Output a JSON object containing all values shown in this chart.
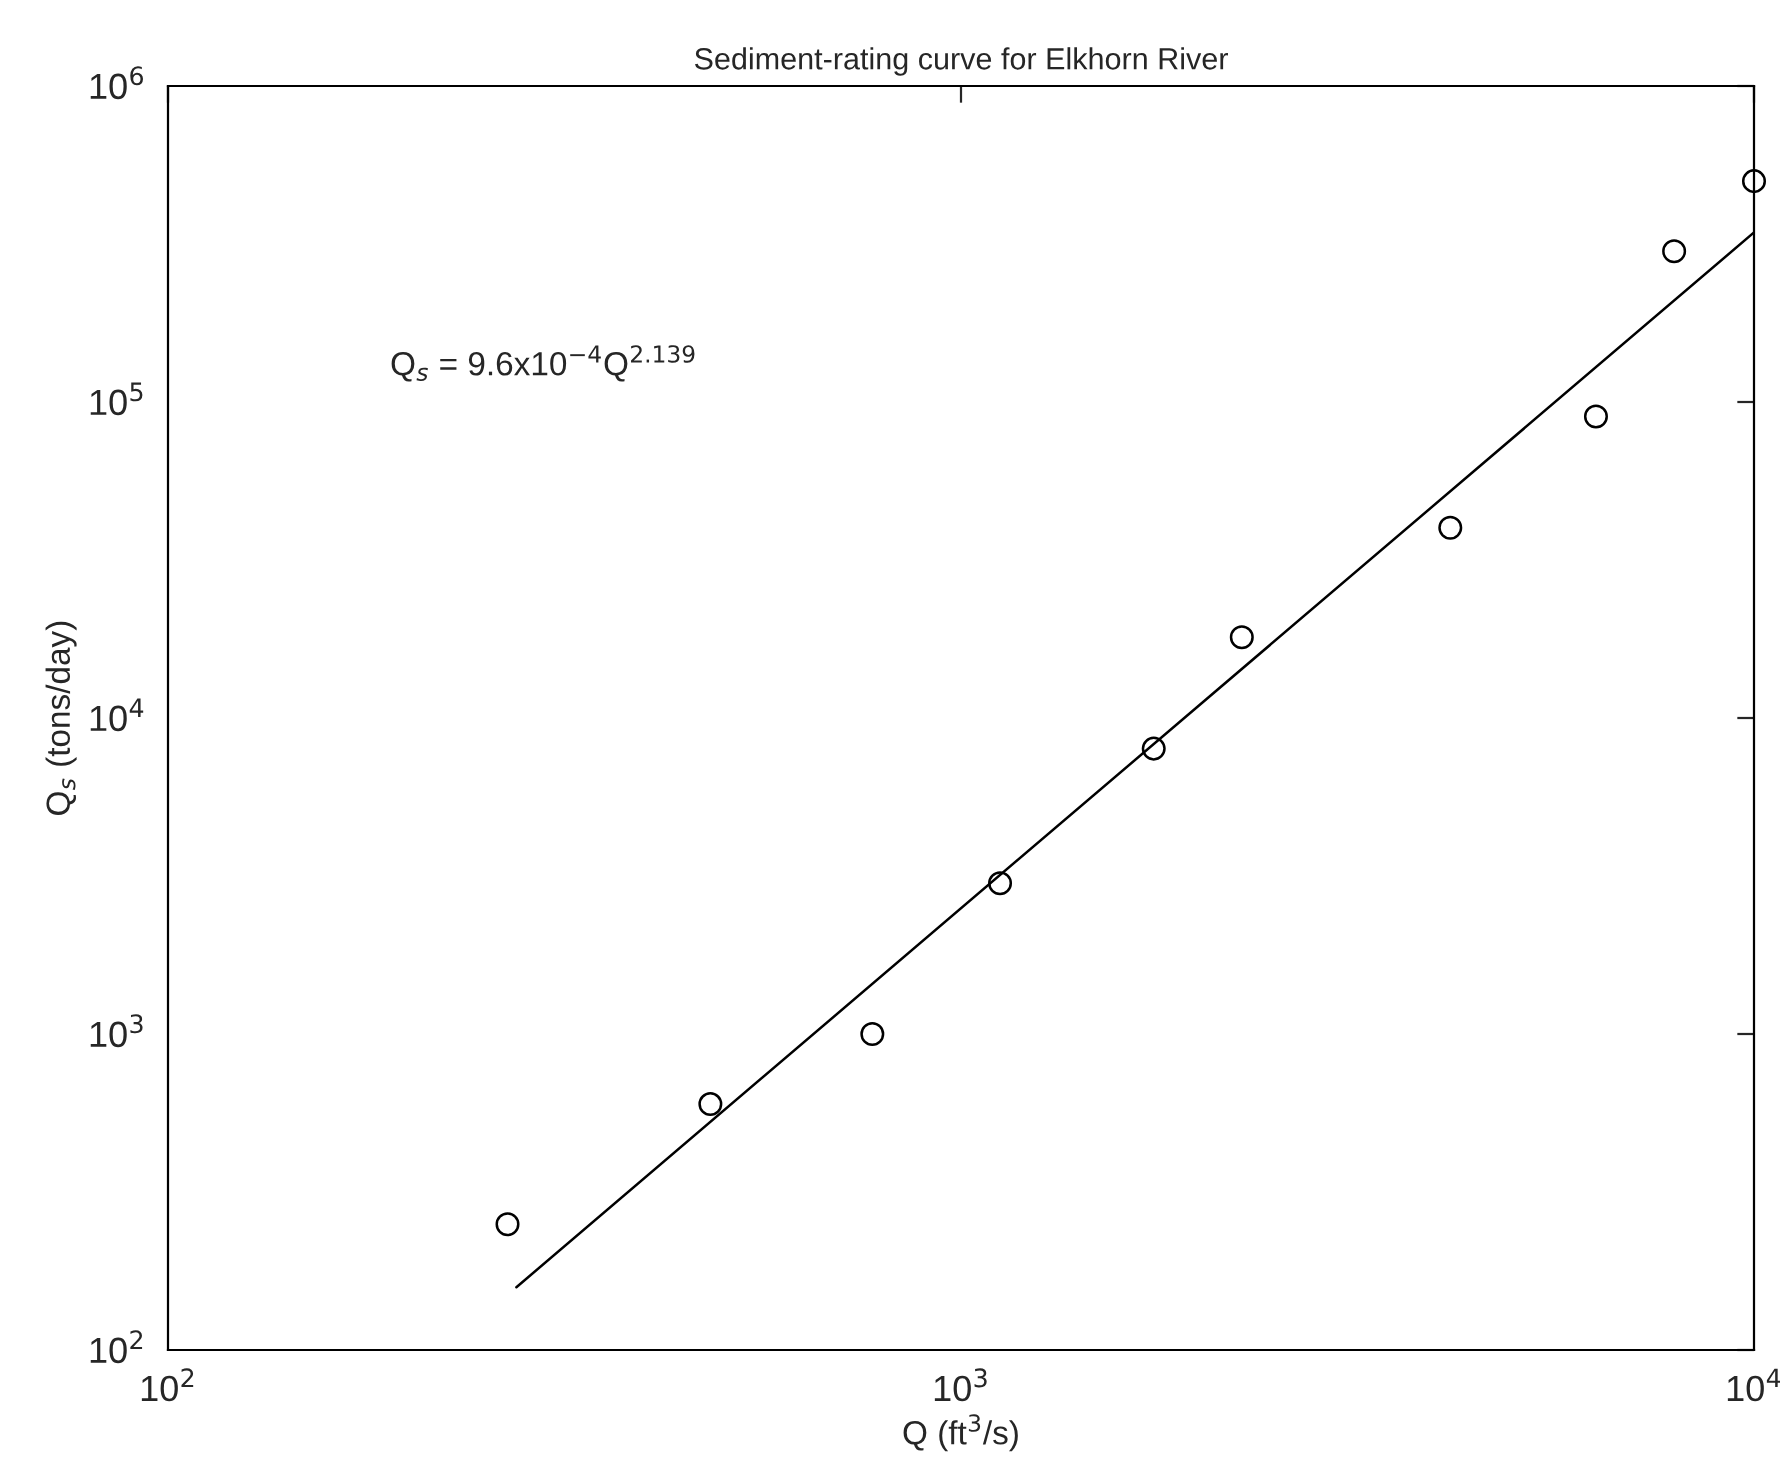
{
  "chart_data": {
    "type": "scatter",
    "title": "Sediment-rating curve for Elkhorn River",
    "xlabel": "Q (ft$^{3}$/s)",
    "ylabel": "Q$_{s}$ (tons/day)",
    "log": "xy",
    "xlim": [
      100,
      10000
    ],
    "ylim": [
      100,
      1000000
    ],
    "xticks": [
      {
        "value": 100,
        "label": "10$^{2}$"
      },
      {
        "value": 1000,
        "label": "10$^{3}$"
      },
      {
        "value": 10000,
        "label": "10$^{4}$"
      }
    ],
    "yticks": [
      {
        "value": 100,
        "label": "10$^{2}$"
      },
      {
        "value": 1000,
        "label": "10$^{3}$"
      },
      {
        "value": 10000,
        "label": "10$^{4}$"
      },
      {
        "value": 100000,
        "label": "10$^{5}$"
      },
      {
        "value": 1000000,
        "label": "10$^{6}$"
      }
    ],
    "grid": false,
    "series": [
      {
        "marker": "circle",
        "color": "#000000",
        "x": [
          268,
          483,
          773,
          1120,
          1750,
          2260,
          4140,
          6320,
          7930,
          10000
        ],
        "values": [
          250,
          600,
          1000,
          3000,
          8000,
          18000,
          40000,
          90000,
          300000,
          500000
        ]
      },
      {
        "type": "line",
        "color": "#000000",
        "x": [
          275,
          10000
        ],
        "values": [
          158,
          344000
        ]
      }
    ],
    "annotations": [
      "Q$_{s}$ = 9.6x10$^{−4}$Q$^{2.139}$"
    ]
  }
}
